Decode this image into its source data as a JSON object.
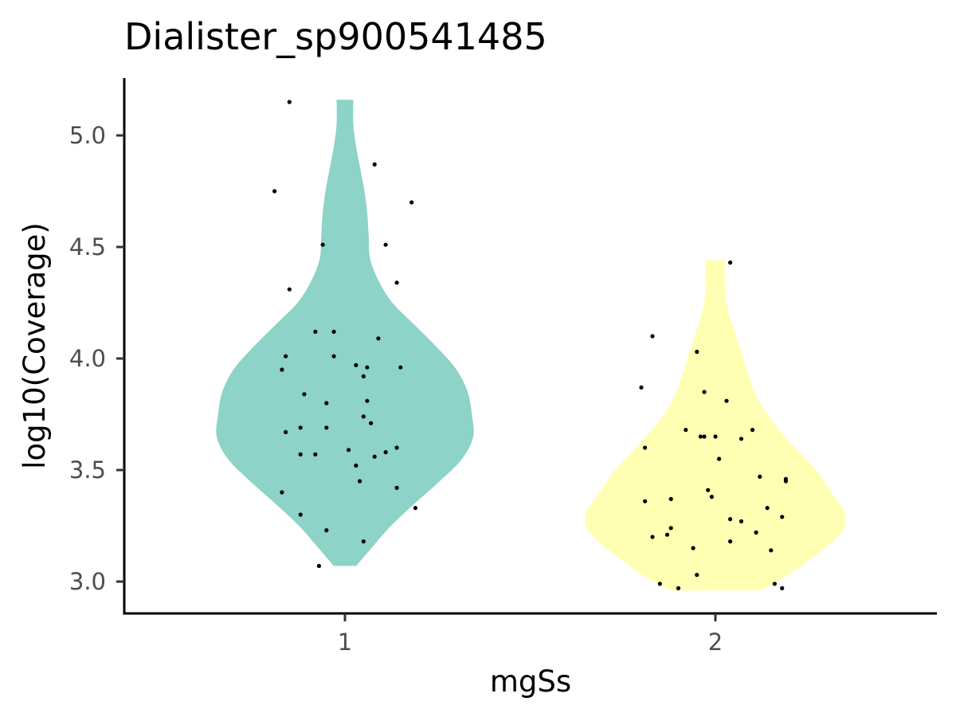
{
  "chart_data": {
    "type": "violin",
    "title": "Dialister_sp900541485",
    "xlabel": "mgSs",
    "ylabel": "log10(Coverage)",
    "categories": [
      "1",
      "2"
    ],
    "ylim": [
      2.86,
      5.26
    ],
    "yticks": [
      3.0,
      3.5,
      4.0,
      4.5,
      5.0
    ],
    "ytick_labels": [
      "3.0",
      "3.5",
      "4.0",
      "4.5",
      "5.0"
    ],
    "grid": false,
    "legend": "none",
    "colors": [
      "#8DD3C7",
      "#FFFFB3"
    ],
    "point_color": "#000000",
    "violins": [
      {
        "category": "1",
        "range": [
          3.07,
          5.16
        ],
        "density": [
          [
            3.07,
            0.08
          ],
          [
            3.15,
            0.19
          ],
          [
            3.25,
            0.33
          ],
          [
            3.35,
            0.5
          ],
          [
            3.45,
            0.68
          ],
          [
            3.55,
            0.84
          ],
          [
            3.65,
            0.92
          ],
          [
            3.75,
            0.91
          ],
          [
            3.85,
            0.88
          ],
          [
            3.95,
            0.8
          ],
          [
            4.05,
            0.66
          ],
          [
            4.15,
            0.5
          ],
          [
            4.25,
            0.34
          ],
          [
            4.35,
            0.24
          ],
          [
            4.45,
            0.18
          ],
          [
            4.55,
            0.17
          ],
          [
            4.65,
            0.16
          ],
          [
            4.75,
            0.14
          ],
          [
            4.85,
            0.11
          ],
          [
            4.95,
            0.08
          ],
          [
            5.05,
            0.06
          ],
          [
            5.16,
            0.06
          ]
        ]
      },
      {
        "category": "2",
        "range": [
          2.96,
          4.44
        ],
        "density": [
          [
            2.96,
            0.32
          ],
          [
            3.02,
            0.5
          ],
          [
            3.1,
            0.68
          ],
          [
            3.18,
            0.84
          ],
          [
            3.25,
            0.93
          ],
          [
            3.32,
            0.92
          ],
          [
            3.4,
            0.83
          ],
          [
            3.5,
            0.72
          ],
          [
            3.6,
            0.57
          ],
          [
            3.7,
            0.43
          ],
          [
            3.8,
            0.32
          ],
          [
            3.9,
            0.25
          ],
          [
            4.0,
            0.2
          ],
          [
            4.1,
            0.15
          ],
          [
            4.2,
            0.1
          ],
          [
            4.3,
            0.07
          ],
          [
            4.44,
            0.07
          ]
        ]
      }
    ],
    "points": [
      {
        "category": "1",
        "jitter": -0.15,
        "y": 5.15
      },
      {
        "category": "1",
        "jitter": -0.19,
        "y": 4.75
      },
      {
        "category": "1",
        "jitter": 0.08,
        "y": 4.87
      },
      {
        "category": "1",
        "jitter": 0.18,
        "y": 4.7
      },
      {
        "category": "1",
        "jitter": -0.06,
        "y": 4.51
      },
      {
        "category": "1",
        "jitter": 0.11,
        "y": 4.51
      },
      {
        "category": "1",
        "jitter": -0.15,
        "y": 4.31
      },
      {
        "category": "1",
        "jitter": 0.14,
        "y": 4.34
      },
      {
        "category": "1",
        "jitter": -0.08,
        "y": 4.12
      },
      {
        "category": "1",
        "jitter": -0.03,
        "y": 4.12
      },
      {
        "category": "1",
        "jitter": 0.09,
        "y": 4.09
      },
      {
        "category": "1",
        "jitter": -0.16,
        "y": 4.01
      },
      {
        "category": "1",
        "jitter": -0.03,
        "y": 4.01
      },
      {
        "category": "1",
        "jitter": -0.17,
        "y": 3.95
      },
      {
        "category": "1",
        "jitter": 0.03,
        "y": 3.97
      },
      {
        "category": "1",
        "jitter": 0.06,
        "y": 3.96
      },
      {
        "category": "1",
        "jitter": 0.05,
        "y": 3.92
      },
      {
        "category": "1",
        "jitter": 0.15,
        "y": 3.96
      },
      {
        "category": "1",
        "jitter": -0.11,
        "y": 3.84
      },
      {
        "category": "1",
        "jitter": -0.05,
        "y": 3.8
      },
      {
        "category": "1",
        "jitter": 0.06,
        "y": 3.81
      },
      {
        "category": "1",
        "jitter": 0.05,
        "y": 3.74
      },
      {
        "category": "1",
        "jitter": 0.07,
        "y": 3.71
      },
      {
        "category": "1",
        "jitter": -0.12,
        "y": 3.69
      },
      {
        "category": "1",
        "jitter": -0.05,
        "y": 3.69
      },
      {
        "category": "1",
        "jitter": -0.16,
        "y": 3.67
      },
      {
        "category": "1",
        "jitter": -0.12,
        "y": 3.57
      },
      {
        "category": "1",
        "jitter": -0.08,
        "y": 3.57
      },
      {
        "category": "1",
        "jitter": 0.01,
        "y": 3.59
      },
      {
        "category": "1",
        "jitter": 0.08,
        "y": 3.56
      },
      {
        "category": "1",
        "jitter": 0.11,
        "y": 3.58
      },
      {
        "category": "1",
        "jitter": 0.14,
        "y": 3.6
      },
      {
        "category": "1",
        "jitter": 0.03,
        "y": 3.52
      },
      {
        "category": "1",
        "jitter": 0.04,
        "y": 3.45
      },
      {
        "category": "1",
        "jitter": -0.17,
        "y": 3.4
      },
      {
        "category": "1",
        "jitter": 0.14,
        "y": 3.42
      },
      {
        "category": "1",
        "jitter": 0.19,
        "y": 3.33
      },
      {
        "category": "1",
        "jitter": -0.12,
        "y": 3.3
      },
      {
        "category": "1",
        "jitter": -0.05,
        "y": 3.23
      },
      {
        "category": "1",
        "jitter": 0.05,
        "y": 3.18
      },
      {
        "category": "1",
        "jitter": -0.07,
        "y": 3.07
      },
      {
        "category": "2",
        "jitter": 0.04,
        "y": 4.43
      },
      {
        "category": "2",
        "jitter": -0.17,
        "y": 4.1
      },
      {
        "category": "2",
        "jitter": -0.05,
        "y": 4.03
      },
      {
        "category": "2",
        "jitter": -0.2,
        "y": 3.87
      },
      {
        "category": "2",
        "jitter": -0.03,
        "y": 3.85
      },
      {
        "category": "2",
        "jitter": 0.03,
        "y": 3.81
      },
      {
        "category": "2",
        "jitter": -0.08,
        "y": 3.68
      },
      {
        "category": "2",
        "jitter": 0.1,
        "y": 3.68
      },
      {
        "category": "2",
        "jitter": -0.04,
        "y": 3.65
      },
      {
        "category": "2",
        "jitter": -0.03,
        "y": 3.65
      },
      {
        "category": "2",
        "jitter": 0.0,
        "y": 3.65
      },
      {
        "category": "2",
        "jitter": 0.07,
        "y": 3.64
      },
      {
        "category": "2",
        "jitter": -0.19,
        "y": 3.6
      },
      {
        "category": "2",
        "jitter": 0.01,
        "y": 3.55
      },
      {
        "category": "2",
        "jitter": 0.12,
        "y": 3.47
      },
      {
        "category": "2",
        "jitter": 0.19,
        "y": 3.46
      },
      {
        "category": "2",
        "jitter": 0.19,
        "y": 3.45
      },
      {
        "category": "2",
        "jitter": -0.02,
        "y": 3.41
      },
      {
        "category": "2",
        "jitter": -0.01,
        "y": 3.38
      },
      {
        "category": "2",
        "jitter": -0.19,
        "y": 3.36
      },
      {
        "category": "2",
        "jitter": -0.12,
        "y": 3.37
      },
      {
        "category": "2",
        "jitter": 0.14,
        "y": 3.33
      },
      {
        "category": "2",
        "jitter": 0.18,
        "y": 3.29
      },
      {
        "category": "2",
        "jitter": 0.04,
        "y": 3.28
      },
      {
        "category": "2",
        "jitter": 0.07,
        "y": 3.27
      },
      {
        "category": "2",
        "jitter": 0.11,
        "y": 3.22
      },
      {
        "category": "2",
        "jitter": -0.12,
        "y": 3.24
      },
      {
        "category": "2",
        "jitter": -0.13,
        "y": 3.21
      },
      {
        "category": "2",
        "jitter": -0.17,
        "y": 3.2
      },
      {
        "category": "2",
        "jitter": 0.04,
        "y": 3.18
      },
      {
        "category": "2",
        "jitter": -0.06,
        "y": 3.15
      },
      {
        "category": "2",
        "jitter": 0.15,
        "y": 3.14
      },
      {
        "category": "2",
        "jitter": -0.05,
        "y": 3.03
      },
      {
        "category": "2",
        "jitter": -0.15,
        "y": 2.99
      },
      {
        "category": "2",
        "jitter": 0.16,
        "y": 2.99
      },
      {
        "category": "2",
        "jitter": -0.1,
        "y": 2.97
      },
      {
        "category": "2",
        "jitter": 0.18,
        "y": 2.97
      }
    ]
  }
}
